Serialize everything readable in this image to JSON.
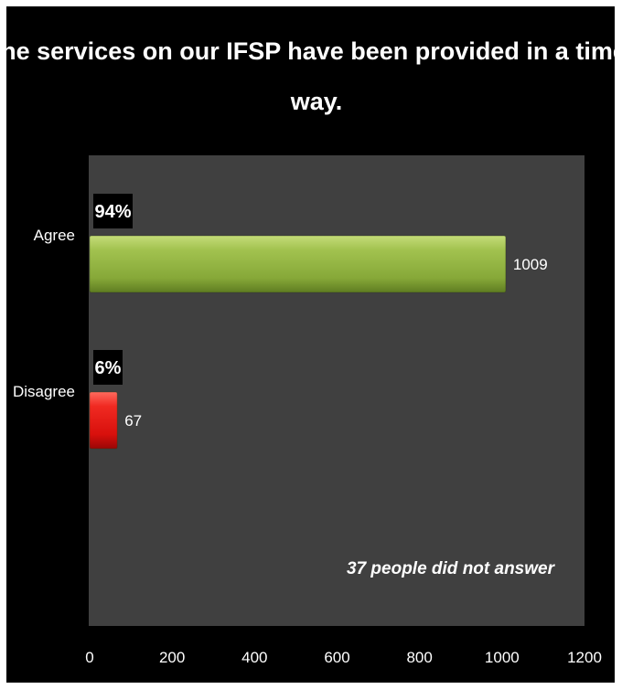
{
  "chart_data": {
    "type": "bar",
    "orientation": "horizontal",
    "title": "The services on our IFSP have been provided in a timely way.",
    "title_lines": [
      "The services on our IFSP have been provided in a timely",
      "way."
    ],
    "categories": [
      "Agree",
      "Disagree"
    ],
    "values": [
      1009,
      67
    ],
    "data_labels": [
      "1009",
      "67"
    ],
    "percent_labels": [
      "94%",
      "6%"
    ],
    "colors": [
      "#8db03c",
      "#e8120f"
    ],
    "xlim": [
      0,
      1200
    ],
    "xticks": [
      0,
      200,
      400,
      600,
      800,
      1000,
      1200
    ],
    "xtick_labels": [
      "0",
      "200",
      "400",
      "600",
      "800",
      "1000",
      "1200"
    ],
    "annotation": "37 people did not answer",
    "grid": false,
    "legend": "none",
    "plot_background": "#404040",
    "page_background": "#000000"
  }
}
